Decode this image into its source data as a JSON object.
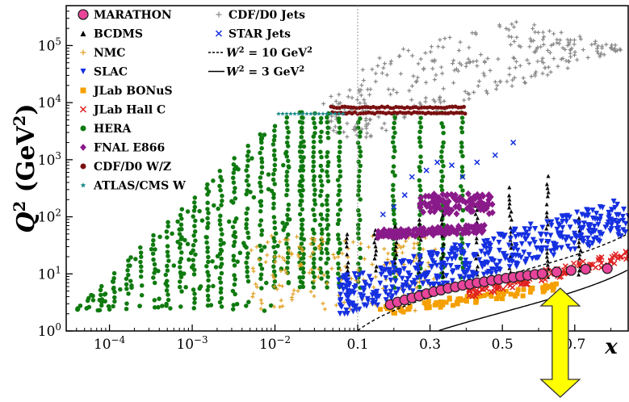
{
  "chart_data": {
    "type": "scatter",
    "title": "",
    "xlabel": "x",
    "ylabel_main": "Q",
    "ylabel_sup": "2",
    "ylabel_unit_open": " (GeV",
    "ylabel_unit_sup": "2",
    "ylabel_unit_close": ")",
    "x_scale": "log (x < 0.1) / linear (x ≥ 0.1)",
    "y_scale": "log",
    "ylim": [
      1,
      500000
    ],
    "xlim_log": [
      3e-05,
      0.1
    ],
    "xlim_lin": [
      0.1,
      0.85
    ],
    "x_ticks_log": [
      {
        "base": "10",
        "exp": "−4",
        "value": 0.0001
      },
      {
        "base": "10",
        "exp": "−3",
        "value": 0.001
      },
      {
        "base": "10",
        "exp": "−2",
        "value": 0.01
      }
    ],
    "x_ticks_lin": [
      {
        "label": "0.1",
        "value": 0.1
      },
      {
        "label": "0.3",
        "value": 0.3
      },
      {
        "label": "0.5",
        "value": 0.5
      },
      {
        "label": "0.7",
        "value": 0.7
      }
    ],
    "y_ticks": [
      {
        "base": "10",
        "exp": "0",
        "value": 1
      },
      {
        "base": "10",
        "exp": "1",
        "value": 10
      },
      {
        "base": "10",
        "exp": "2",
        "value": 100
      },
      {
        "base": "10",
        "exp": "3",
        "value": 1000
      },
      {
        "base": "10",
        "exp": "4",
        "value": 10000
      },
      {
        "base": "10",
        "exp": "5",
        "value": 100000
      }
    ],
    "legend_placement": "top-left",
    "legend": [
      {
        "name": "MARATHON",
        "marker": "circle-large",
        "color": "#e8449a",
        "edge": "#222222"
      },
      {
        "name": "BCDMS",
        "marker": "triangle-up",
        "color": "#000000"
      },
      {
        "name": "NMC",
        "marker": "plus",
        "color": "#e0a020"
      },
      {
        "name": "SLAC",
        "marker": "triangle-down",
        "color": "#1530e0"
      },
      {
        "name": "JLab BONuS",
        "marker": "square",
        "color": "#f5a000"
      },
      {
        "name": "JLab Hall C",
        "marker": "x",
        "color": "#e02020"
      },
      {
        "name": "HERA",
        "marker": "circle",
        "color": "#0f7a0f"
      },
      {
        "name": "FNAL E866",
        "marker": "diamond",
        "color": "#8a1a8a"
      },
      {
        "name": "CDF/D0 W/Z",
        "marker": "circle",
        "color": "#7a1010"
      },
      {
        "name": "ATLAS/CMS W",
        "marker": "star",
        "color": "#1a8a8a"
      },
      {
        "name": "CDF/D0 Jets",
        "marker": "plus",
        "color": "#888888"
      },
      {
        "name": "STAR Jets",
        "marker": "x",
        "color": "#1530e0"
      }
    ],
    "curves_legend": [
      {
        "style": "dashed",
        "w": "W",
        "sup": "2",
        "eq": " = 10 GeV",
        "unit_sup": "2",
        "w2": 10
      },
      {
        "style": "solid",
        "w": "W",
        "sup": "2",
        "eq": " = 3 GeV",
        "unit_sup": "2",
        "w2": 3
      }
    ],
    "marathon_points": [
      [
        0.19,
        2.9
      ],
      [
        0.21,
        3.2
      ],
      [
        0.23,
        3.5
      ],
      [
        0.25,
        3.8
      ],
      [
        0.27,
        4.1
      ],
      [
        0.29,
        4.5
      ],
      [
        0.31,
        4.9
      ],
      [
        0.33,
        5.2
      ],
      [
        0.35,
        5.6
      ],
      [
        0.37,
        5.9
      ],
      [
        0.39,
        6.3
      ],
      [
        0.41,
        6.6
      ],
      [
        0.43,
        7.0
      ],
      [
        0.45,
        7.3
      ],
      [
        0.47,
        7.7
      ],
      [
        0.49,
        8.0
      ],
      [
        0.51,
        8.4
      ],
      [
        0.53,
        8.7
      ],
      [
        0.55,
        9.1
      ],
      [
        0.57,
        9.4
      ],
      [
        0.59,
        9.8
      ],
      [
        0.61,
        10.1
      ],
      [
        0.65,
        10.8
      ],
      [
        0.69,
        11.5
      ],
      [
        0.73,
        12.1
      ],
      [
        0.79,
        12.4
      ]
    ],
    "star_jets_points": [
      [
        0.17,
        110
      ],
      [
        0.2,
        150
      ],
      [
        0.23,
        240
      ],
      [
        0.25,
        500
      ],
      [
        0.29,
        650
      ],
      [
        0.32,
        900
      ],
      [
        0.36,
        800
      ],
      [
        0.39,
        500
      ],
      [
        0.43,
        900
      ],
      [
        0.48,
        1200
      ],
      [
        0.53,
        2000
      ]
    ],
    "annotation_arrow": {
      "color": "#ffff00",
      "edge": "#333333",
      "x": 0.66
    }
  }
}
